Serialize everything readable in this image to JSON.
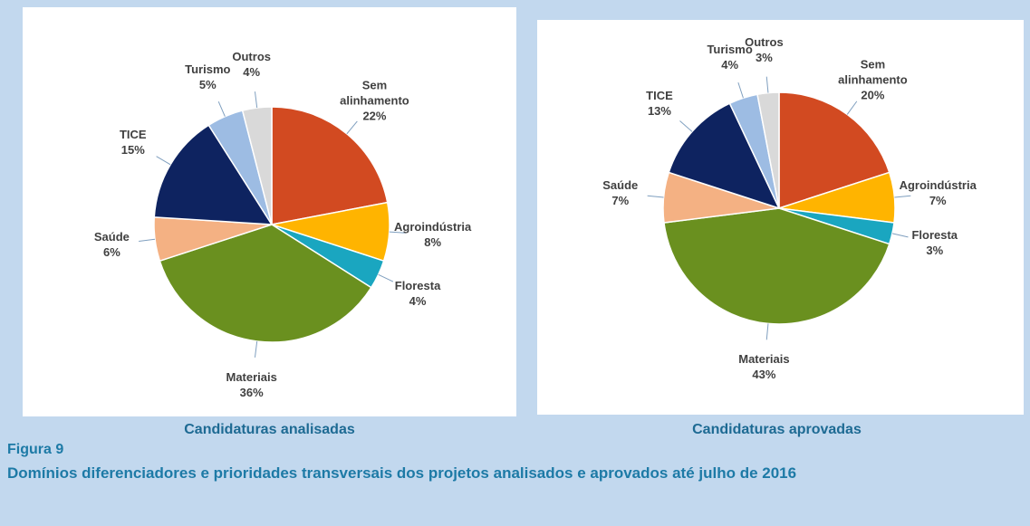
{
  "chart_data": [
    {
      "type": "pie",
      "title": "Candidaturas analisadas",
      "categories": [
        "Sem alinhamento",
        "Agroindústria",
        "Floresta",
        "Materiais",
        "Saúde",
        "TICE",
        "Turismo",
        "Outros"
      ],
      "values": [
        22,
        8,
        4,
        36,
        6,
        15,
        5,
        4
      ],
      "value_labels": [
        "22%",
        "8%",
        "4%",
        "36%",
        "6%",
        "15%",
        "5%",
        "4%"
      ],
      "colors": [
        "#d24a21",
        "#ffb400",
        "#1aa6c0",
        "#6a901f",
        "#f4b183",
        "#0e2360",
        "#9dbce3",
        "#d9d9d9"
      ]
    },
    {
      "type": "pie",
      "title": "Candidaturas aprovadas",
      "categories": [
        "Sem alinhamento",
        "Agroindústria",
        "Floresta",
        "Materiais",
        "Saúde",
        "TICE",
        "Turismo",
        "Outros"
      ],
      "values": [
        20,
        7,
        3,
        43,
        7,
        13,
        4,
        3
      ],
      "value_labels": [
        "20%",
        "7%",
        "3%",
        "43%",
        "7%",
        "13%",
        "4%",
        "3%"
      ],
      "colors": [
        "#d24a21",
        "#ffb400",
        "#1aa6c0",
        "#6a901f",
        "#f4b183",
        "#0e2360",
        "#9dbce3",
        "#d9d9d9"
      ]
    }
  ],
  "figure_label": "Figura 9",
  "figure_caption": "Domínios diferenciadores e prioridades transversais dos projetos analisados e aprovados até julho de 2016"
}
